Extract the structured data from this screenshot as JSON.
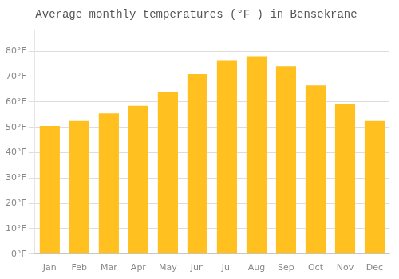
{
  "chart_data": {
    "type": "bar",
    "title": "Average monthly temperatures (°F ) in Bensekrane",
    "categories": [
      "Jan",
      "Feb",
      "Mar",
      "Apr",
      "May",
      "Jun",
      "Jul",
      "Aug",
      "Sep",
      "Oct",
      "Nov",
      "Dec"
    ],
    "values": [
      50.5,
      52.5,
      55.5,
      58.5,
      64,
      71,
      76.5,
      78,
      74,
      66.5,
      59,
      52.5
    ],
    "color": "#FFC020",
    "ylim": [
      0,
      88
    ],
    "yticks": [
      {
        "value": 0,
        "label": "0°F"
      },
      {
        "value": 10,
        "label": "10°F"
      },
      {
        "value": 20,
        "label": "20°F"
      },
      {
        "value": 30,
        "label": "30°F"
      },
      {
        "value": 40,
        "label": "40°F"
      },
      {
        "value": 50,
        "label": "50°F"
      },
      {
        "value": 60,
        "label": "60°F"
      },
      {
        "value": 70,
        "label": "70°F"
      },
      {
        "value": 80,
        "label": "80°F"
      }
    ],
    "grid": true
  }
}
